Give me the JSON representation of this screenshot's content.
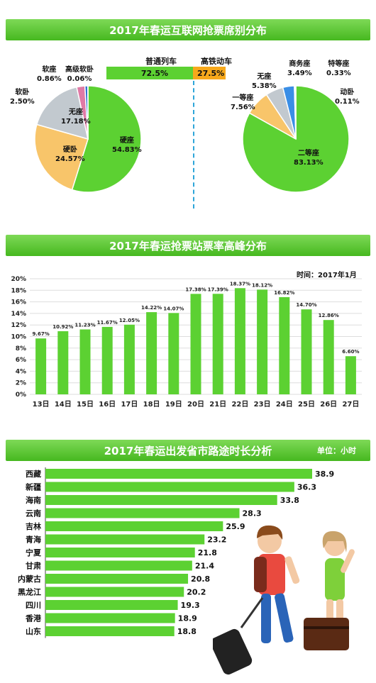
{
  "sections": {
    "ticket_types_title": "2017年春运互联网抢票席别分布",
    "peak_title": "2017年春运抢票站票率高峰分布",
    "duration_title": "2017年春运出发省市路途时长分析",
    "duration_unit": "单位：小时",
    "peak_time_note": "时间：2017年1月"
  },
  "train_split": {
    "left_name": "普通列车",
    "left_value": "72.5%",
    "right_name": "高铁动车",
    "right_value": "27.5%",
    "colors": {
      "left": "#5cd132",
      "right": "#f7a81b"
    }
  },
  "chart_data": [
    {
      "type": "pie",
      "title": "",
      "slices": [
        {
          "label": "硬座",
          "value": 54.83,
          "text": "54.83%",
          "color": "#5cd132"
        },
        {
          "label": "硬卧",
          "value": 24.57,
          "text": "24.57%",
          "color": "#f8c56a"
        },
        {
          "label": "无座",
          "value": 17.18,
          "text": "17.18%",
          "color": "#c2c9cf"
        },
        {
          "label": "软卧",
          "value": 2.5,
          "text": "2.50%",
          "color": "#e07aa6"
        },
        {
          "label": "软座",
          "value": 0.86,
          "text": "0.86%",
          "color": "#2e6fd1"
        },
        {
          "label": "高级软卧",
          "value": 0.06,
          "text": "0.06%",
          "color": "#8d5dc4"
        }
      ]
    },
    {
      "type": "pie",
      "title": "",
      "slices": [
        {
          "label": "二等座",
          "value": 83.13,
          "text": "83.13%",
          "color": "#5cd132"
        },
        {
          "label": "一等座",
          "value": 7.56,
          "text": "7.56%",
          "color": "#f8c56a"
        },
        {
          "label": "无座",
          "value": 5.38,
          "text": "5.38%",
          "color": "#c2c9cf"
        },
        {
          "label": "商务座",
          "value": 3.49,
          "text": "3.49%",
          "color": "#3a8ee6"
        },
        {
          "label": "特等座",
          "value": 0.33,
          "text": "0.33%",
          "color": "#e07aa6"
        },
        {
          "label": "动卧",
          "value": 0.11,
          "text": "0.11%",
          "color": "#8d5dc4"
        }
      ]
    },
    {
      "type": "bar",
      "title": "",
      "categories": [
        "13日",
        "14日",
        "15日",
        "16日",
        "17日",
        "18日",
        "19日",
        "20日",
        "21日",
        "22日",
        "23日",
        "24日",
        "25日",
        "26日",
        "27日"
      ],
      "values": [
        9.67,
        10.92,
        11.23,
        11.67,
        12.05,
        14.22,
        14.07,
        17.38,
        17.39,
        18.37,
        18.12,
        16.82,
        14.7,
        12.86,
        6.6
      ],
      "value_labels": [
        "9.67%",
        "10.92%",
        "11.23%",
        "11.67%",
        "12.05%",
        "14.22%",
        "14.07%",
        "17.38%",
        "17.39%",
        "18.37%",
        "18.12%",
        "16.82%",
        "14.70%",
        "12.86%",
        "6.60%"
      ],
      "ylim": [
        0,
        20
      ],
      "yticks": [
        "0%",
        "2%",
        "4%",
        "6%",
        "8%",
        "10%",
        "12%",
        "14%",
        "16%",
        "18%",
        "20%"
      ],
      "grid": true,
      "color": "#5cd132"
    },
    {
      "type": "bar",
      "orientation": "horizontal",
      "title": "",
      "categories": [
        "西藏",
        "新疆",
        "海南",
        "云南",
        "吉林",
        "青海",
        "宁夏",
        "甘肃",
        "内蒙古",
        "黑龙江",
        "四川",
        "香港",
        "山东"
      ],
      "values": [
        38.9,
        36.3,
        33.8,
        28.3,
        25.9,
        23.2,
        21.8,
        21.4,
        20.8,
        20.2,
        19.3,
        18.9,
        18.8
      ],
      "value_labels": [
        "38.9",
        "36.3",
        "33.8",
        "28.3",
        "25.9",
        "23.2",
        "21.8",
        "21.4",
        "20.8",
        "20.2",
        "19.3",
        "18.9",
        "18.8"
      ],
      "color": "#5cd132"
    }
  ]
}
